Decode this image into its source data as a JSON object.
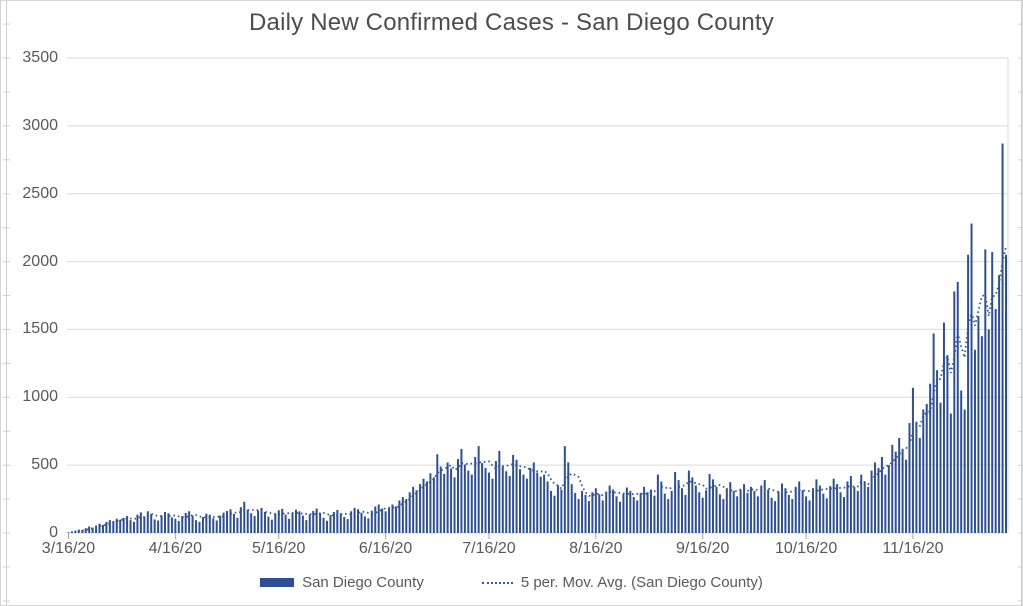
{
  "title": "Daily New Confirmed Cases - San Diego County",
  "legend": {
    "series1_label": "San Diego County",
    "series2_label": "5 per. Mov. Avg. (San Diego County)"
  },
  "colors": {
    "bar": "#2e4f92",
    "moving_avg": "#35589e",
    "gridline": "#d9d9d9",
    "plot_right_border": "#d9d9d9",
    "month_tick": "#a6a6a6",
    "edge_ruler": "#d0d0d0",
    "axis_text": "#595959",
    "title_text": "#4d4d4d"
  },
  "chart_data": {
    "type": "bar",
    "title": "Daily New Confirmed Cases - San Diego County",
    "xlabel": "",
    "ylabel": "",
    "grid": "horizontal",
    "legend_position": "bottom",
    "x": {
      "start": "3/16/20",
      "end": "12/13/20",
      "frequency": "daily",
      "tick_labels": [
        "3/16/20",
        "4/16/20",
        "5/16/20",
        "6/16/20",
        "7/16/20",
        "8/16/20",
        "9/16/20",
        "10/16/20",
        "11/16/20"
      ],
      "tick_day_indices": [
        0,
        31,
        61,
        92,
        122,
        153,
        184,
        214,
        245
      ]
    },
    "y": {
      "min": 0,
      "max": 3500,
      "tick_step": 500,
      "tick_labels": [
        "0",
        "500",
        "1000",
        "1500",
        "2000",
        "2500",
        "3000",
        "3500"
      ]
    },
    "series": [
      {
        "name": "San Diego County",
        "type": "bar",
        "values": [
          5,
          12,
          18,
          25,
          22,
          35,
          48,
          40,
          55,
          68,
          60,
          82,
          95,
          88,
          105,
          98,
          112,
          125,
          95,
          82,
          135,
          152,
          120,
          160,
          140,
          100,
          92,
          130,
          155,
          145,
          115,
          105,
          88,
          125,
          148,
          160,
          130,
          95,
          82,
          118,
          142,
          135,
          108,
          92,
          128,
          150,
          162,
          175,
          140,
          112,
          190,
          230,
          172,
          145,
          125,
          165,
          185,
          155,
          120,
          98,
          142,
          168,
          178,
          135,
          105,
          150,
          172,
          160,
          128,
          95,
          138,
          162,
          180,
          148,
          112,
          90,
          132,
          155,
          170,
          145,
          118,
          102,
          160,
          185,
          175,
          150,
          122,
          108,
          165,
          195,
          210,
          180,
          160,
          185,
          210,
          195,
          240,
          265,
          250,
          300,
          340,
          315,
          360,
          400,
          380,
          440,
          410,
          580,
          490,
          435,
          520,
          475,
          410,
          545,
          620,
          505,
          460,
          430,
          560,
          640,
          515,
          480,
          445,
          400,
          530,
          605,
          490,
          455,
          420,
          575,
          540,
          470,
          430,
          400,
          480,
          520,
          445,
          415,
          430,
          380,
          310,
          275,
          350,
          320,
          640,
          520,
          360,
          295,
          250,
          310,
          280,
          235,
          300,
          330,
          285,
          240,
          305,
          350,
          320,
          270,
          230,
          290,
          335,
          310,
          265,
          240,
          295,
          340,
          300,
          320,
          275,
          430,
          380,
          290,
          250,
          310,
          450,
          390,
          330,
          280,
          460,
          410,
          350,
          300,
          260,
          315,
          435,
          395,
          340,
          285,
          250,
          330,
          375,
          310,
          270,
          320,
          360,
          295,
          340,
          310,
          270,
          350,
          390,
          320,
          260,
          235,
          305,
          365,
          330,
          280,
          250,
          340,
          380,
          315,
          270,
          240,
          330,
          395,
          350,
          290,
          255,
          345,
          400,
          360,
          300,
          265,
          380,
          420,
          340,
          310,
          430,
          380,
          340,
          460,
          520,
          480,
          560,
          430,
          500,
          650,
          600,
          700,
          620,
          540,
          810,
          1070,
          820,
          700,
          910,
          950,
          1100,
          1470,
          1200,
          960,
          1550,
          1310,
          880,
          1780,
          1850,
          1050,
          910,
          2050,
          2280,
          1350,
          1600,
          1450,
          2090,
          1500,
          2070,
          1650,
          1900,
          2870,
          2050
        ]
      },
      {
        "name": "5 per. Mov. Avg. (San Diego County)",
        "type": "dotted-line",
        "derived_from": "5-period trailing moving average of the San Diego County daily values"
      }
    ]
  }
}
